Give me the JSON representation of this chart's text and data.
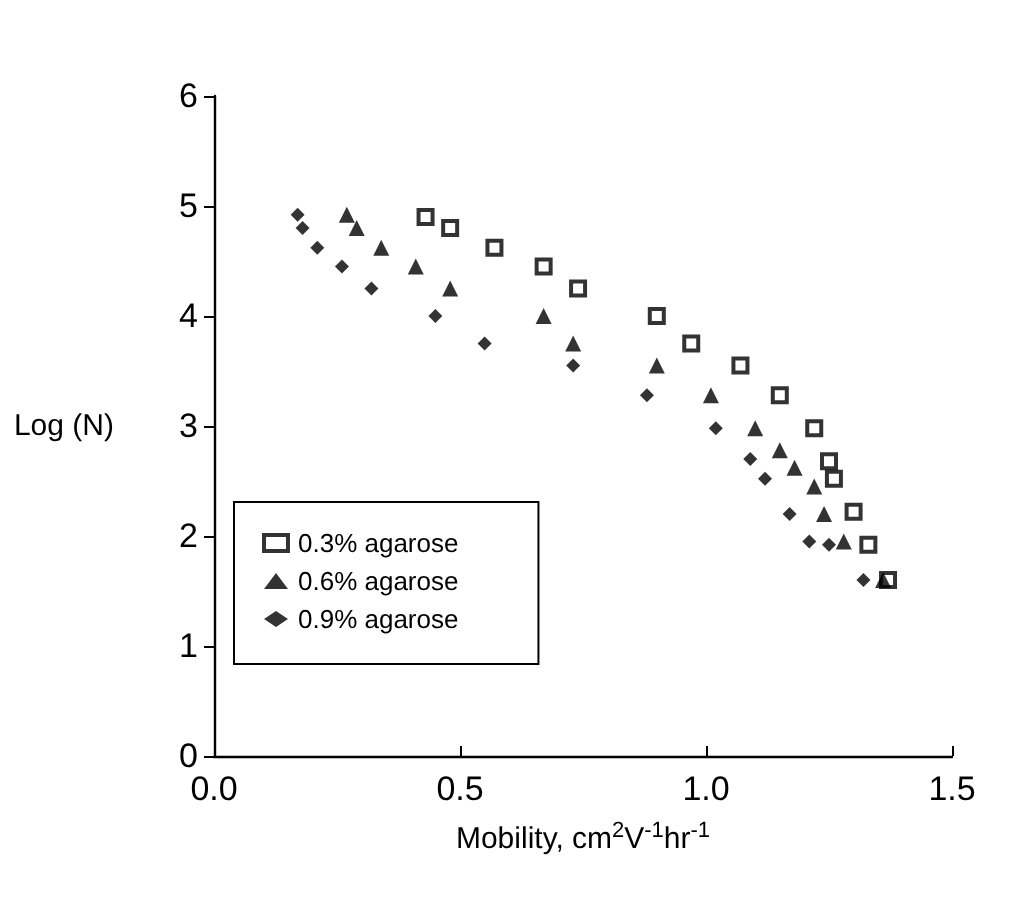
{
  "chart_data": {
    "type": "scatter",
    "xlabel": "Mobility, cm$^{2}$V$^{-1}$hr$^{-1}$",
    "ylabel": "Log (N)",
    "xlim": [
      0,
      1.5
    ],
    "xticks": [
      {
        "value": 0,
        "label": "0.0"
      },
      {
        "value": 0.5,
        "label": "0.5"
      },
      {
        "value": 1,
        "label": "1.0"
      },
      {
        "value": 1.5,
        "label": "1.5"
      }
    ],
    "ylim": [
      0,
      6
    ],
    "yticks": [
      0,
      1,
      2,
      3,
      4,
      5,
      6
    ],
    "grid": false,
    "legend": "bottom left",
    "series": [
      {
        "name": "0.3% agarose",
        "color": "#000000",
        "marker": "square",
        "x": [
          0.43,
          0.48,
          0.57,
          0.67,
          0.74,
          0.9,
          0.97,
          1.07,
          1.15,
          1.22,
          1.25,
          1.26,
          1.3,
          1.33,
          1.37
        ],
        "values": [
          4.9,
          4.8,
          4.62,
          4.45,
          4.25,
          4.0,
          3.75,
          3.55,
          3.28,
          2.98,
          2.68,
          2.52,
          2.22,
          1.92,
          1.6
        ]
      },
      {
        "name": "0.6% agarose",
        "color": "#000000",
        "marker": "triangle",
        "x": [
          0.27,
          0.29,
          0.34,
          0.41,
          0.48,
          0.67,
          0.73,
          0.9,
          1.01,
          1.1,
          1.15,
          1.18,
          1.22,
          1.24,
          1.28,
          1.36
        ],
        "values": [
          4.92,
          4.8,
          4.62,
          4.45,
          4.25,
          4.0,
          3.75,
          3.55,
          3.28,
          2.98,
          2.78,
          2.62,
          2.45,
          2.2,
          1.95,
          1.6
        ]
      },
      {
        "name": "0.9% agarose",
        "color": "#000000",
        "marker": "diamond",
        "x": [
          0.17,
          0.18,
          0.21,
          0.26,
          0.32,
          0.45,
          0.55,
          0.73,
          0.88,
          1.02,
          1.09,
          1.12,
          1.17,
          1.21,
          1.25,
          1.32
        ],
        "values": [
          4.92,
          4.8,
          4.62,
          4.45,
          4.25,
          4.0,
          3.75,
          3.55,
          3.28,
          2.98,
          2.7,
          2.52,
          2.2,
          1.95,
          1.92,
          1.6
        ]
      }
    ]
  }
}
